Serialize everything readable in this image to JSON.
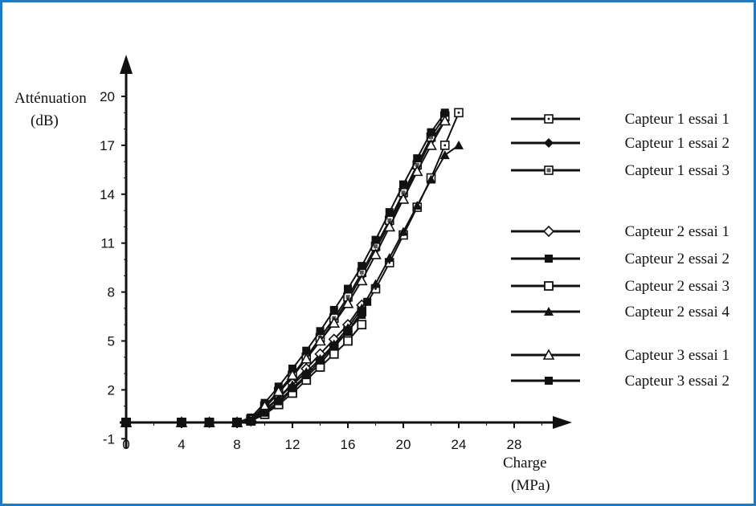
{
  "chart_data": {
    "type": "line",
    "ylabel_line1": "Atténuation",
    "ylabel_line2": "(dB)",
    "xlabel_line1": "Charge",
    "xlabel_line2": "(MPa)",
    "xlim": [
      0,
      30
    ],
    "ylim": [
      -1,
      21
    ],
    "xticks": [
      0,
      4,
      8,
      12,
      16,
      20,
      24,
      28
    ],
    "yticks": [
      -1,
      2,
      5,
      8,
      11,
      14,
      17,
      20
    ],
    "grid": false,
    "legend_position": "right",
    "legend": [
      {
        "name": "Capteur 1 essai 1",
        "marker": "square-dot"
      },
      {
        "name": "Capteur 1 essai 2",
        "marker": "diamond-filled"
      },
      {
        "name": "Capteur 1 essai 3",
        "marker": "square-hatched"
      },
      {
        "name": "Capteur 2 essai 1",
        "marker": "diamond-open"
      },
      {
        "name": "Capteur 2 essai 2",
        "marker": "square-filled"
      },
      {
        "name": "Capteur 2 essai 3",
        "marker": "square-open"
      },
      {
        "name": "Capteur 2 essai 4",
        "marker": "triangle-filled"
      },
      {
        "name": "Capteur 3 essai 1",
        "marker": "triangle-open"
      },
      {
        "name": "Capteur 3 essai 2",
        "marker": "square-filled"
      }
    ],
    "series": [
      {
        "name": "Capteur 1 essai 1",
        "marker": "square-dot",
        "points": [
          [
            0,
            0
          ],
          [
            4,
            0
          ],
          [
            6,
            0
          ],
          [
            8,
            0
          ],
          [
            9,
            0.1
          ],
          [
            10,
            0.6
          ],
          [
            11,
            1.2
          ],
          [
            12,
            2
          ],
          [
            13,
            2.8
          ],
          [
            14,
            3.6
          ],
          [
            15,
            4.6
          ],
          [
            16,
            5.6
          ],
          [
            17,
            6.8
          ],
          [
            18,
            8.2
          ],
          [
            19,
            9.8
          ],
          [
            20,
            11.5
          ],
          [
            21,
            13.2
          ],
          [
            22,
            15
          ],
          [
            23,
            17
          ],
          [
            24,
            19
          ]
        ]
      },
      {
        "name": "Capteur 1 essai 2",
        "marker": "diamond-filled",
        "points": [
          [
            0,
            0
          ],
          [
            4,
            0
          ],
          [
            6,
            0
          ],
          [
            8,
            0
          ],
          [
            9,
            0.2
          ],
          [
            10,
            0.9
          ],
          [
            11,
            1.8
          ],
          [
            12,
            2.8
          ],
          [
            13,
            3.9
          ],
          [
            14,
            5
          ],
          [
            15,
            6.2
          ],
          [
            16,
            7.5
          ],
          [
            17,
            9
          ],
          [
            18,
            10.6
          ],
          [
            19,
            12.2
          ],
          [
            20,
            13.9
          ],
          [
            21,
            15.6
          ],
          [
            22,
            17.3
          ],
          [
            23,
            18.5
          ]
        ]
      },
      {
        "name": "Capteur 1 essai 3",
        "marker": "square-hatched",
        "points": [
          [
            0,
            0
          ],
          [
            4,
            0
          ],
          [
            6,
            0
          ],
          [
            8,
            0
          ],
          [
            9,
            0.2
          ],
          [
            10,
            1
          ],
          [
            11,
            1.9
          ],
          [
            12,
            2.9
          ],
          [
            13,
            4
          ],
          [
            14,
            5.2
          ],
          [
            15,
            6.4
          ],
          [
            16,
            7.7
          ],
          [
            17,
            9.2
          ],
          [
            18,
            10.8
          ],
          [
            19,
            12.4
          ],
          [
            20,
            14.1
          ],
          [
            21,
            15.8
          ],
          [
            22,
            17.5
          ],
          [
            23,
            18.8
          ]
        ]
      },
      {
        "name": "Capteur 2 essai 1",
        "marker": "diamond-open",
        "points": [
          [
            0,
            0
          ],
          [
            4,
            0
          ],
          [
            6,
            0
          ],
          [
            8,
            0
          ],
          [
            9,
            0.1
          ],
          [
            10,
            0.7
          ],
          [
            11,
            1.5
          ],
          [
            12,
            2.4
          ],
          [
            13,
            3.3
          ],
          [
            14,
            4.2
          ],
          [
            15,
            5.1
          ],
          [
            16,
            6
          ],
          [
            17,
            7.2
          ]
        ]
      },
      {
        "name": "Capteur 2 essai 2",
        "marker": "square-filled",
        "points": [
          [
            0,
            0
          ],
          [
            4,
            0
          ],
          [
            6,
            0
          ],
          [
            8,
            0
          ],
          [
            9,
            0.3
          ],
          [
            10,
            1.2
          ],
          [
            11,
            2.2
          ],
          [
            12,
            3.3
          ],
          [
            13,
            4.4
          ],
          [
            14,
            5.6
          ],
          [
            15,
            6.9
          ],
          [
            16,
            8.2
          ],
          [
            17,
            9.6
          ],
          [
            18,
            11.2
          ],
          [
            19,
            12.9
          ],
          [
            20,
            14.6
          ],
          [
            21,
            16.2
          ],
          [
            22,
            17.8
          ],
          [
            23,
            19
          ]
        ]
      },
      {
        "name": "Capteur 2 essai 3",
        "marker": "square-open",
        "points": [
          [
            0,
            0
          ],
          [
            4,
            0
          ],
          [
            6,
            0
          ],
          [
            8,
            0
          ],
          [
            9,
            0.1
          ],
          [
            10,
            0.5
          ],
          [
            11,
            1.1
          ],
          [
            12,
            1.8
          ],
          [
            13,
            2.6
          ],
          [
            14,
            3.4
          ],
          [
            15,
            4.2
          ],
          [
            16,
            5
          ],
          [
            17,
            6
          ]
        ]
      },
      {
        "name": "Capteur 2 essai 4",
        "marker": "triangle-filled",
        "points": [
          [
            0,
            0
          ],
          [
            4,
            0
          ],
          [
            6,
            0
          ],
          [
            8,
            0
          ],
          [
            9,
            0.2
          ],
          [
            10,
            0.8
          ],
          [
            11,
            1.5
          ],
          [
            12,
            2.3
          ],
          [
            13,
            3.1
          ],
          [
            14,
            3.9
          ],
          [
            15,
            4.8
          ],
          [
            16,
            5.8
          ],
          [
            17,
            7
          ],
          [
            18,
            8.5
          ],
          [
            19,
            10.1
          ],
          [
            20,
            11.7
          ],
          [
            21,
            13.3
          ],
          [
            22,
            14.9
          ],
          [
            23,
            16.4
          ],
          [
            24,
            17
          ]
        ]
      },
      {
        "name": "Capteur 3 essai 1",
        "marker": "triangle-open",
        "points": [
          [
            0,
            0
          ],
          [
            4,
            0
          ],
          [
            6,
            0
          ],
          [
            8,
            0
          ],
          [
            9,
            0.2
          ],
          [
            10,
            1
          ],
          [
            11,
            1.9
          ],
          [
            12,
            2.9
          ],
          [
            13,
            3.9
          ],
          [
            14,
            5
          ],
          [
            15,
            6.1
          ],
          [
            16,
            7.3
          ],
          [
            17,
            8.7
          ],
          [
            18,
            10.3
          ],
          [
            19,
            12
          ],
          [
            20,
            13.7
          ],
          [
            21,
            15.4
          ],
          [
            22,
            17
          ],
          [
            23,
            18.5
          ]
        ]
      },
      {
        "name": "Capteur 3 essai 2",
        "marker": "square-filled",
        "points": [
          [
            0,
            0
          ],
          [
            4,
            0
          ],
          [
            6,
            0
          ],
          [
            8,
            0
          ],
          [
            9,
            0.1
          ],
          [
            10,
            0.6
          ],
          [
            11,
            1.3
          ],
          [
            12,
            2.1
          ],
          [
            13,
            2.9
          ],
          [
            14,
            3.8
          ],
          [
            15,
            4.7
          ],
          [
            16,
            5.6
          ],
          [
            17,
            6.6
          ],
          [
            17.4,
            7.4
          ]
        ]
      }
    ]
  }
}
